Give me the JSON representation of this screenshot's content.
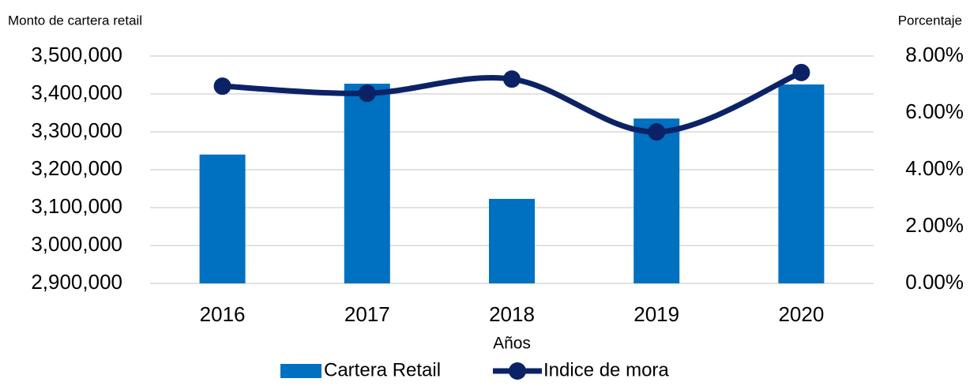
{
  "chart_data": {
    "type": "bar_line",
    "y_axis_label": "Monto de cartera retail",
    "y2_axis_label": "Porcentaje",
    "x_axis_label": "Años",
    "categories": [
      "2016",
      "2017",
      "2018",
      "2019",
      "2020"
    ],
    "series": [
      {
        "name": "Cartera Retail",
        "type": "bar",
        "color": "#0070c0",
        "values": [
          3240000,
          3427000,
          3123000,
          3335000,
          3425000
        ]
      },
      {
        "name": "Indice de mora",
        "type": "line",
        "axis": "y2",
        "color": "#0b2366",
        "values": [
          6.94,
          6.69,
          7.19,
          5.33,
          7.42
        ]
      }
    ],
    "ylim": [
      2900000,
      3500000
    ],
    "yticks": [
      {
        "value": 2900000,
        "label": "2,900,000"
      },
      {
        "value": 3000000,
        "label": "3,000,000"
      },
      {
        "value": 3100000,
        "label": "3,100,000"
      },
      {
        "value": 3200000,
        "label": "3,200,000"
      },
      {
        "value": 3300000,
        "label": "3,300,000"
      },
      {
        "value": 3400000,
        "label": "3,400,000"
      },
      {
        "value": 3500000,
        "label": "3,500,000"
      }
    ],
    "y2lim": [
      0,
      8
    ],
    "y2ticks": [
      {
        "value": 0,
        "label": "0.00%"
      },
      {
        "value": 2,
        "label": "2.00%"
      },
      {
        "value": 4,
        "label": "4.00%"
      },
      {
        "value": 6,
        "label": "6.00%"
      },
      {
        "value": 8,
        "label": "8.00%"
      }
    ],
    "grid": true,
    "legend": "bottom"
  }
}
